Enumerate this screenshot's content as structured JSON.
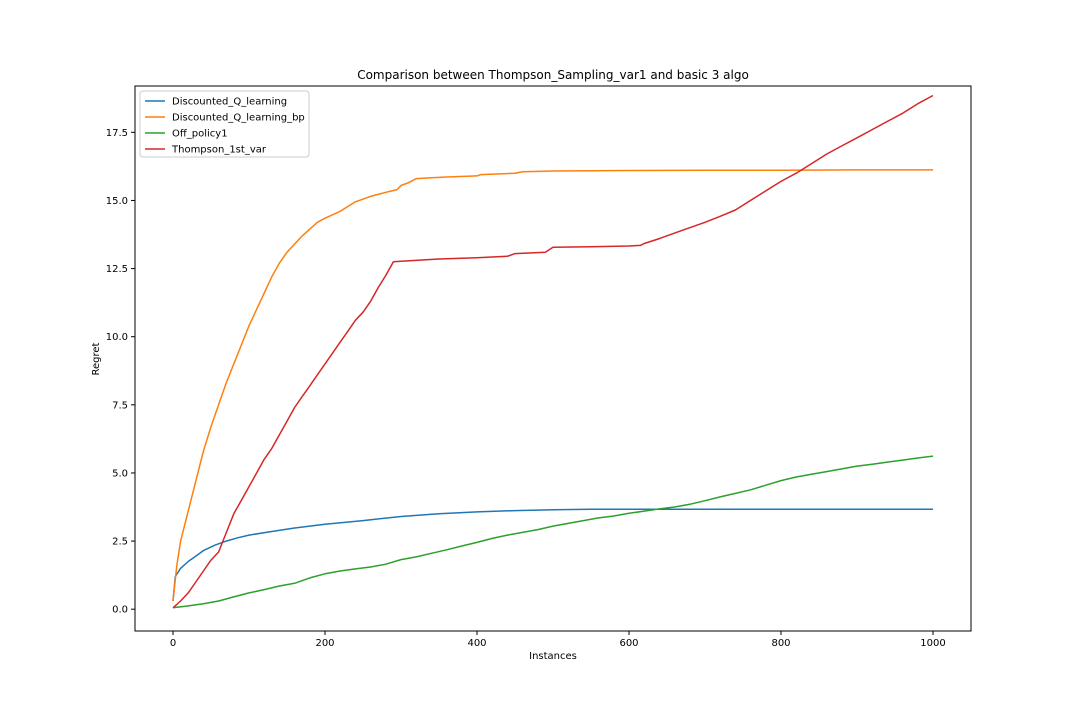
{
  "chart_data": {
    "type": "line",
    "title": "Comparison between Thompson_Sampling_var1 and basic 3 algo",
    "xlabel": "Instances",
    "ylabel": "Regret",
    "xlim": [
      -50,
      1050
    ],
    "ylim": [
      -0.8,
      19.2
    ],
    "xticks": [
      0,
      200,
      400,
      600,
      800,
      1000
    ],
    "xtick_labels": [
      "0",
      "200",
      "400",
      "600",
      "800",
      "1000"
    ],
    "yticks": [
      0,
      2.5,
      5,
      7.5,
      10,
      12.5,
      15,
      17.5
    ],
    "ytick_labels": [
      "0.0",
      "2.5",
      "5.0",
      "7.5",
      "10.0",
      "12.5",
      "15.0",
      "17.5"
    ],
    "grid": false,
    "legend_position": "top-left",
    "series": [
      {
        "name": "Discounted_Q_learning",
        "color": "#1f77b4",
        "points": [
          [
            0,
            0.3
          ],
          [
            3,
            1.2
          ],
          [
            10,
            1.5
          ],
          [
            20,
            1.75
          ],
          [
            30,
            1.95
          ],
          [
            40,
            2.15
          ],
          [
            55,
            2.35
          ],
          [
            70,
            2.5
          ],
          [
            85,
            2.62
          ],
          [
            100,
            2.72
          ],
          [
            130,
            2.85
          ],
          [
            160,
            2.98
          ],
          [
            200,
            3.12
          ],
          [
            250,
            3.25
          ],
          [
            300,
            3.4
          ],
          [
            350,
            3.5
          ],
          [
            400,
            3.57
          ],
          [
            450,
            3.62
          ],
          [
            500,
            3.65
          ],
          [
            550,
            3.67
          ],
          [
            600,
            3.67
          ],
          [
            700,
            3.67
          ],
          [
            800,
            3.67
          ],
          [
            900,
            3.67
          ],
          [
            1000,
            3.67
          ]
        ]
      },
      {
        "name": "Discounted_Q_learning_bp",
        "color": "#ff7f0e",
        "points": [
          [
            0,
            0.3
          ],
          [
            5,
            1.6
          ],
          [
            10,
            2.5
          ],
          [
            20,
            3.6
          ],
          [
            30,
            4.7
          ],
          [
            40,
            5.8
          ],
          [
            50,
            6.7
          ],
          [
            60,
            7.5
          ],
          [
            70,
            8.3
          ],
          [
            80,
            9.0
          ],
          [
            90,
            9.7
          ],
          [
            100,
            10.4
          ],
          [
            110,
            11.0
          ],
          [
            120,
            11.6
          ],
          [
            130,
            12.2
          ],
          [
            140,
            12.7
          ],
          [
            150,
            13.1
          ],
          [
            160,
            13.4
          ],
          [
            170,
            13.7
          ],
          [
            180,
            13.95
          ],
          [
            190,
            14.2
          ],
          [
            200,
            14.35
          ],
          [
            220,
            14.6
          ],
          [
            240,
            14.95
          ],
          [
            260,
            15.15
          ],
          [
            280,
            15.3
          ],
          [
            295,
            15.4
          ],
          [
            300,
            15.55
          ],
          [
            310,
            15.65
          ],
          [
            320,
            15.8
          ],
          [
            340,
            15.83
          ],
          [
            360,
            15.86
          ],
          [
            400,
            15.9
          ],
          [
            405,
            15.95
          ],
          [
            450,
            16.0
          ],
          [
            460,
            16.05
          ],
          [
            500,
            16.08
          ],
          [
            600,
            16.1
          ],
          [
            700,
            16.11
          ],
          [
            800,
            16.11
          ],
          [
            900,
            16.12
          ],
          [
            1000,
            16.12
          ]
        ]
      },
      {
        "name": "Off_policy1",
        "color": "#2ca02c",
        "points": [
          [
            0,
            0.05
          ],
          [
            20,
            0.12
          ],
          [
            40,
            0.2
          ],
          [
            60,
            0.3
          ],
          [
            80,
            0.45
          ],
          [
            100,
            0.6
          ],
          [
            120,
            0.72
          ],
          [
            140,
            0.85
          ],
          [
            160,
            0.95
          ],
          [
            180,
            1.15
          ],
          [
            200,
            1.3
          ],
          [
            220,
            1.4
          ],
          [
            240,
            1.48
          ],
          [
            260,
            1.55
          ],
          [
            280,
            1.65
          ],
          [
            300,
            1.82
          ],
          [
            320,
            1.92
          ],
          [
            340,
            2.05
          ],
          [
            360,
            2.18
          ],
          [
            380,
            2.32
          ],
          [
            400,
            2.45
          ],
          [
            420,
            2.6
          ],
          [
            440,
            2.72
          ],
          [
            460,
            2.82
          ],
          [
            480,
            2.92
          ],
          [
            500,
            3.05
          ],
          [
            520,
            3.15
          ],
          [
            540,
            3.25
          ],
          [
            560,
            3.35
          ],
          [
            580,
            3.42
          ],
          [
            600,
            3.52
          ],
          [
            620,
            3.6
          ],
          [
            640,
            3.68
          ],
          [
            660,
            3.75
          ],
          [
            680,
            3.85
          ],
          [
            700,
            3.98
          ],
          [
            720,
            4.12
          ],
          [
            740,
            4.25
          ],
          [
            760,
            4.38
          ],
          [
            780,
            4.55
          ],
          [
            800,
            4.72
          ],
          [
            820,
            4.85
          ],
          [
            840,
            4.95
          ],
          [
            860,
            5.05
          ],
          [
            880,
            5.15
          ],
          [
            900,
            5.25
          ],
          [
            920,
            5.32
          ],
          [
            940,
            5.4
          ],
          [
            960,
            5.47
          ],
          [
            980,
            5.55
          ],
          [
            1000,
            5.62
          ]
        ]
      },
      {
        "name": "Thompson_1st_var",
        "color": "#d62728",
        "points": [
          [
            0,
            0.05
          ],
          [
            10,
            0.3
          ],
          [
            20,
            0.6
          ],
          [
            30,
            1.0
          ],
          [
            40,
            1.4
          ],
          [
            50,
            1.8
          ],
          [
            60,
            2.1
          ],
          [
            70,
            2.8
          ],
          [
            80,
            3.5
          ],
          [
            90,
            4.0
          ],
          [
            100,
            4.5
          ],
          [
            110,
            5.0
          ],
          [
            120,
            5.5
          ],
          [
            130,
            5.9
          ],
          [
            140,
            6.4
          ],
          [
            150,
            6.9
          ],
          [
            160,
            7.4
          ],
          [
            170,
            7.8
          ],
          [
            180,
            8.2
          ],
          [
            190,
            8.6
          ],
          [
            200,
            9.0
          ],
          [
            210,
            9.4
          ],
          [
            220,
            9.8
          ],
          [
            230,
            10.2
          ],
          [
            240,
            10.6
          ],
          [
            250,
            10.9
          ],
          [
            260,
            11.3
          ],
          [
            270,
            11.8
          ],
          [
            280,
            12.25
          ],
          [
            290,
            12.75
          ],
          [
            300,
            12.77
          ],
          [
            350,
            12.85
          ],
          [
            400,
            12.9
          ],
          [
            440,
            12.95
          ],
          [
            450,
            13.05
          ],
          [
            490,
            13.1
          ],
          [
            500,
            13.28
          ],
          [
            550,
            13.3
          ],
          [
            600,
            13.33
          ],
          [
            615,
            13.35
          ],
          [
            620,
            13.42
          ],
          [
            640,
            13.6
          ],
          [
            660,
            13.8
          ],
          [
            680,
            14.0
          ],
          [
            700,
            14.2
          ],
          [
            720,
            14.42
          ],
          [
            740,
            14.65
          ],
          [
            760,
            15.0
          ],
          [
            780,
            15.35
          ],
          [
            800,
            15.7
          ],
          [
            820,
            16.0
          ],
          [
            840,
            16.35
          ],
          [
            860,
            16.7
          ],
          [
            880,
            17.0
          ],
          [
            900,
            17.3
          ],
          [
            920,
            17.6
          ],
          [
            940,
            17.9
          ],
          [
            960,
            18.2
          ],
          [
            980,
            18.55
          ],
          [
            1000,
            18.85
          ]
        ]
      }
    ]
  }
}
